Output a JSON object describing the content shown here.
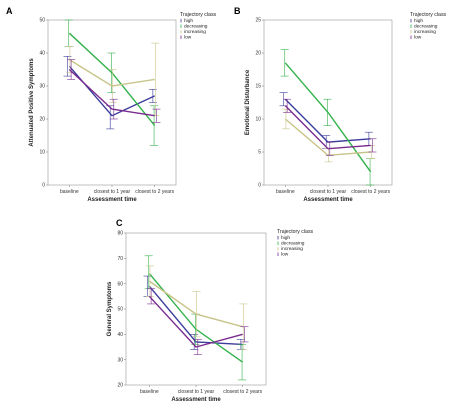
{
  "colors": {
    "high": "#3c3c9c",
    "decreasing": "#33b24a",
    "increasing": "#c8c48a",
    "low": "#7a2b8f"
  },
  "chart_data": [
    {
      "panel_label": "A",
      "type": "line",
      "categories": [
        "baseline",
        "closest to 1 year",
        "closest to 2 years"
      ],
      "xlabel": "Assessment time",
      "ylabel": "Attenuated Positive Symptoms",
      "ylim": [
        0,
        50
      ],
      "yticks": [
        "0",
        "10",
        "20",
        "30",
        "40",
        "50"
      ],
      "legend_title": "Trajectory class",
      "legend_position": "right",
      "series": [
        {
          "name": "high",
          "color_key": "high",
          "values": [
            36,
            21,
            27
          ],
          "err_low": [
            33,
            17,
            25
          ],
          "err_high": [
            39,
            24,
            29
          ]
        },
        {
          "name": "decreasing",
          "color_key": "decreasing",
          "values": [
            46,
            34,
            18
          ],
          "err_low": [
            42,
            28,
            12
          ],
          "err_high": [
            50,
            40,
            24
          ]
        },
        {
          "name": "increasing",
          "color_key": "increasing",
          "values": [
            38,
            30,
            32
          ],
          "err_low": [
            34,
            25,
            21
          ],
          "err_high": [
            42,
            35,
            43
          ]
        },
        {
          "name": "low",
          "color_key": "low",
          "values": [
            35,
            23,
            21
          ],
          "err_low": [
            32,
            20,
            19
          ],
          "err_high": [
            38,
            26,
            23
          ]
        }
      ]
    },
    {
      "panel_label": "B",
      "type": "line",
      "categories": [
        "baseline",
        "closest to 1 year",
        "closest to 2 years"
      ],
      "xlabel": "Assessment time",
      "ylabel": "Emotional Disturbance",
      "ylim": [
        0,
        25
      ],
      "yticks": [
        "0",
        "5",
        "10",
        "15",
        "20",
        "25"
      ],
      "legend_title": "Trajectory class",
      "legend_position": "right",
      "series": [
        {
          "name": "high",
          "color_key": "high",
          "values": [
            13,
            6.5,
            7
          ],
          "err_low": [
            12,
            5.5,
            6
          ],
          "err_high": [
            14,
            7.5,
            8
          ]
        },
        {
          "name": "decreasing",
          "color_key": "decreasing",
          "values": [
            18.5,
            11,
            2
          ],
          "err_low": [
            16.5,
            9,
            0
          ],
          "err_high": [
            20.5,
            13,
            4
          ]
        },
        {
          "name": "increasing",
          "color_key": "increasing",
          "values": [
            10,
            4.5,
            5
          ],
          "err_low": [
            8.5,
            3.5,
            4
          ],
          "err_high": [
            11.5,
            5.5,
            6
          ]
        },
        {
          "name": "low",
          "color_key": "low",
          "values": [
            12,
            5.5,
            6
          ],
          "err_low": [
            11,
            4.5,
            5
          ],
          "err_high": [
            13,
            6.5,
            7
          ]
        }
      ]
    },
    {
      "panel_label": "C",
      "type": "line",
      "categories": [
        "baseline",
        "closest to 1 year",
        "closest to 2 years"
      ],
      "xlabel": "Assessment time",
      "ylabel": "General Symptoms",
      "ylim": [
        20,
        80
      ],
      "yticks": [
        "20",
        "30",
        "40",
        "50",
        "60",
        "70",
        "80"
      ],
      "legend_title": "Trajectory class",
      "legend_position": "right",
      "series": [
        {
          "name": "high",
          "color_key": "high",
          "values": [
            59,
            37,
            36
          ],
          "err_low": [
            55,
            34,
            34
          ],
          "err_high": [
            63,
            40,
            38
          ]
        },
        {
          "name": "decreasing",
          "color_key": "decreasing",
          "values": [
            64,
            42,
            29
          ],
          "err_low": [
            58,
            36,
            22
          ],
          "err_high": [
            71,
            48,
            36
          ]
        },
        {
          "name": "increasing",
          "color_key": "increasing",
          "values": [
            61,
            48,
            43
          ],
          "err_low": [
            55,
            39,
            34
          ],
          "err_high": [
            67,
            57,
            52
          ]
        },
        {
          "name": "low",
          "color_key": "low",
          "values": [
            55,
            35,
            40
          ],
          "err_low": [
            52,
            32,
            37
          ],
          "err_high": [
            58,
            38,
            43
          ]
        }
      ]
    }
  ]
}
